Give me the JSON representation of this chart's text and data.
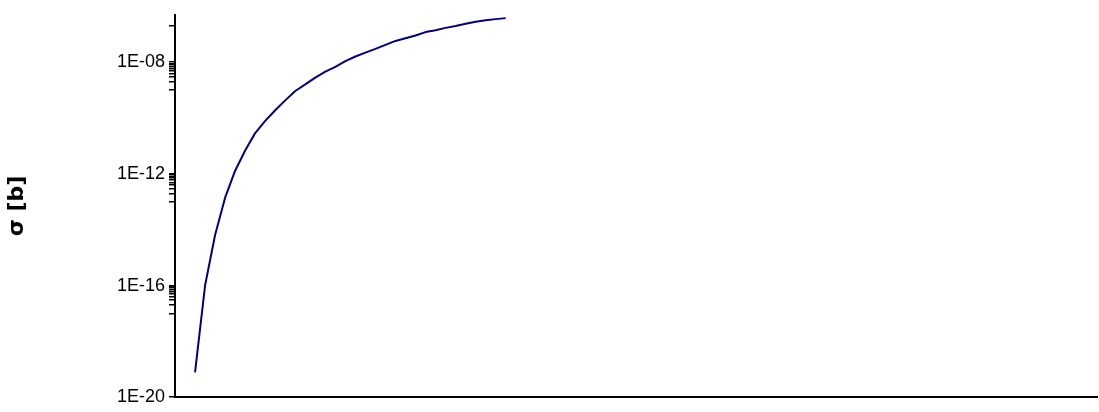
{
  "chart_data": {
    "type": "line",
    "ylabel": "σ [b]",
    "log": "y",
    "grid": false,
    "legend": false,
    "tick_labels": "y",
    "marker": "none",
    "line_style": "solid",
    "categories": [
      null,
      null,
      null,
      null,
      null,
      null,
      null,
      null,
      null,
      null,
      null,
      null,
      null,
      null,
      null,
      null,
      null,
      null,
      null,
      null,
      null,
      null,
      null,
      null,
      null,
      null,
      null,
      null,
      null,
      null,
      null,
      null,
      null,
      null,
      null,
      null,
      null,
      null,
      null,
      null,
      null,
      null,
      null,
      null,
      null,
      null,
      null,
      null,
      null,
      null,
      null,
      null,
      null,
      null,
      null,
      null,
      null,
      null,
      null,
      null,
      null,
      null,
      null,
      null,
      null,
      null,
      null,
      null,
      null,
      null,
      null,
      null,
      null,
      null,
      null,
      null,
      null,
      null,
      null,
      null,
      null,
      null,
      null,
      null,
      null,
      null,
      null,
      null,
      null,
      null,
      null,
      null,
      null
    ],
    "series": [
      {
        "color": "#000080",
        "values": [
          null,
          null,
          7.8e-20,
          1e-16,
          6.5e-15,
          1.4e-13,
          1.3e-12,
          6.9e-12,
          2.9e-11,
          7.9e-11,
          1.9e-10,
          4.3e-10,
          9.3e-10,
          1.6e-09,
          2.8e-09,
          4.6e-09,
          6.8e-09,
          1.1e-08,
          1.6e-08,
          2.2e-08,
          3e-08,
          4.2e-08,
          5.8e-08,
          7.2e-08,
          9.1e-08,
          1.2e-07,
          1.4e-07,
          1.7e-07,
          2e-07,
          2.4e-07,
          2.8e-07,
          3.2e-07,
          3.5e-07,
          3.8e-07,
          null,
          null,
          null,
          null,
          null,
          null,
          null,
          null,
          null,
          null,
          null,
          null,
          null,
          null,
          null,
          null,
          null,
          null,
          null,
          null,
          null,
          null,
          null,
          null,
          null,
          null,
          null,
          null,
          null,
          null,
          null,
          null,
          null,
          null,
          null,
          null,
          null,
          null,
          null,
          null,
          null,
          null,
          null,
          null,
          null,
          null,
          null,
          null,
          null,
          null,
          null,
          null,
          null,
          null,
          null,
          null,
          null,
          null,
          null
        ]
      }
    ],
    "ylim": [
      1e-20,
      5e-07
    ],
    "yticks": [
      {
        "value": 1e-20,
        "label": "1E-20"
      },
      {
        "value": 1e-17,
        "label": null
      },
      {
        "value": 2e-17,
        "label": null
      },
      {
        "value": 3e-17,
        "label": null
      },
      {
        "value": 4e-17,
        "label": null
      },
      {
        "value": 5e-17,
        "label": null
      },
      {
        "value": 6e-17,
        "label": null
      },
      {
        "value": 7e-17,
        "label": null
      },
      {
        "value": 8e-17,
        "label": null
      },
      {
        "value": 9e-17,
        "label": null
      },
      {
        "value": 1e-16,
        "label": "1E-16"
      },
      {
        "value": 1e-13,
        "label": null
      },
      {
        "value": 2e-13,
        "label": null
      },
      {
        "value": 3e-13,
        "label": null
      },
      {
        "value": 4e-13,
        "label": null
      },
      {
        "value": 5e-13,
        "label": null
      },
      {
        "value": 6e-13,
        "label": null
      },
      {
        "value": 7e-13,
        "label": null
      },
      {
        "value": 8e-13,
        "label": null
      },
      {
        "value": 9e-13,
        "label": null
      },
      {
        "value": 1e-12,
        "label": "1E-12"
      },
      {
        "value": 1e-09,
        "label": null
      },
      {
        "value": 2e-09,
        "label": null
      },
      {
        "value": 3e-09,
        "label": null
      },
      {
        "value": 4e-09,
        "label": null
      },
      {
        "value": 5e-09,
        "label": null
      },
      {
        "value": 6e-09,
        "label": null
      },
      {
        "value": 7e-09,
        "label": null
      },
      {
        "value": 8e-09,
        "label": null
      },
      {
        "value": 9e-09,
        "label": null
      },
      {
        "value": 1e-08,
        "label": "1E-08"
      },
      {
        "value": 2e-07,
        "label": null
      }
    ]
  }
}
